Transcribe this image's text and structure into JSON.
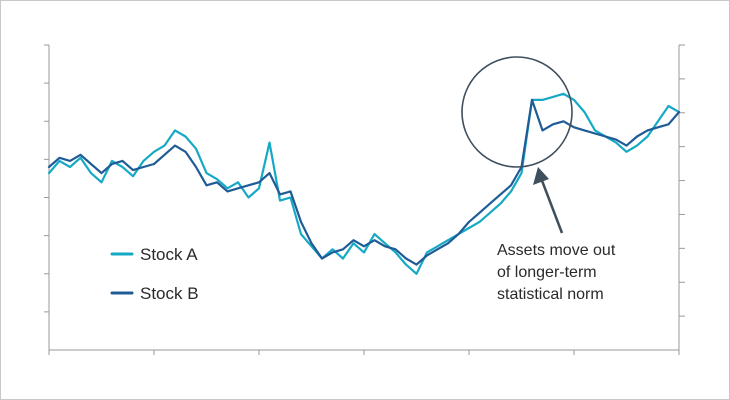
{
  "chart_data": {
    "type": "line",
    "title": "",
    "xlabel": "",
    "ylabel": "",
    "grid": false,
    "legend_position": "left-center",
    "x_range": [
      0,
      120
    ],
    "y_range": [
      0,
      100
    ],
    "series": [
      {
        "name": "Stock A",
        "color": "#16a9c6",
        "x": [
          0,
          2,
          4,
          6,
          8,
          10,
          12,
          14,
          16,
          18,
          20,
          22,
          24,
          26,
          28,
          30,
          32,
          34,
          36,
          38,
          40,
          42,
          44,
          46,
          48,
          50,
          52,
          54,
          56,
          58,
          60,
          62,
          64,
          66,
          68,
          70,
          72,
          74,
          76,
          78,
          80,
          82,
          84,
          86,
          88,
          90,
          92,
          94,
          96,
          98,
          100,
          102,
          104,
          106,
          108,
          110,
          112,
          114,
          116,
          118,
          120
        ],
        "y": [
          58,
          62,
          60,
          63,
          58,
          55,
          62,
          60,
          57,
          62,
          65,
          67,
          72,
          70,
          66,
          58,
          56,
          53,
          55,
          50,
          53,
          68,
          49,
          50,
          38,
          34,
          30,
          33,
          30,
          35,
          32,
          38,
          35,
          32,
          28,
          25,
          32,
          34,
          36,
          38,
          40,
          42,
          45,
          48,
          52,
          58,
          82,
          82,
          83,
          84,
          82,
          78,
          72,
          70,
          68,
          65,
          67,
          70,
          75,
          80,
          78
        ]
      },
      {
        "name": "Stock B",
        "color": "#1f5c96",
        "x": [
          0,
          2,
          4,
          6,
          8,
          10,
          12,
          14,
          16,
          18,
          20,
          22,
          24,
          26,
          28,
          30,
          32,
          34,
          36,
          38,
          40,
          42,
          44,
          46,
          48,
          50,
          52,
          54,
          56,
          58,
          60,
          62,
          64,
          66,
          68,
          70,
          72,
          74,
          76,
          78,
          80,
          82,
          84,
          86,
          88,
          90,
          92,
          94,
          96,
          98,
          100,
          102,
          104,
          106,
          108,
          110,
          112,
          114,
          116,
          118,
          120
        ],
        "y": [
          60,
          63,
          62,
          64,
          61,
          58,
          61,
          62,
          59,
          60,
          61,
          64,
          67,
          65,
          60,
          54,
          55,
          52,
          53,
          54,
          55,
          58,
          51,
          52,
          42,
          35,
          30,
          32,
          33,
          36,
          34,
          36,
          34,
          33,
          30,
          28,
          31,
          33,
          35,
          38,
          42,
          45,
          48,
          51,
          54,
          60,
          82,
          72,
          74,
          75,
          73,
          72,
          71,
          70,
          69,
          67,
          70,
          72,
          73,
          74,
          78
        ]
      }
    ],
    "annotation": {
      "lines": [
        "Assets move out",
        "of longer-term",
        "statistical norm"
      ],
      "arrow_color": "#3f4f5c"
    }
  }
}
